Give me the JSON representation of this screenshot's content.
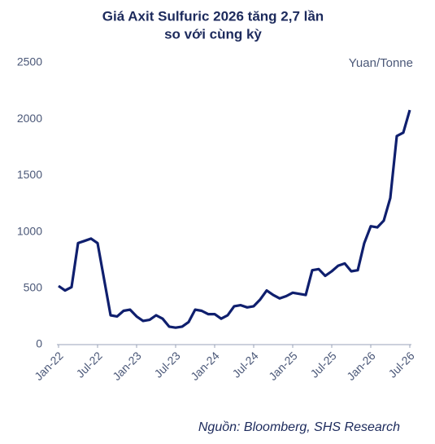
{
  "chart_data": {
    "type": "line",
    "title": [
      "Giá Axit Sulfuric 2026 tăng 2,7 lần",
      "so với cùng kỳ"
    ],
    "unit_label": "Yuan/Tonne",
    "source": "Nguồn: Bloomberg,  SHS Research",
    "categories": [
      "Jan-22",
      null,
      null,
      null,
      null,
      null,
      "Jul-22",
      null,
      null,
      null,
      null,
      null,
      "Jan-23",
      null,
      null,
      null,
      null,
      null,
      "Jul-23",
      null,
      null,
      null,
      null,
      null,
      "Jan-24",
      null,
      null,
      null,
      null,
      null,
      "Jul-24",
      null,
      null,
      null,
      null,
      null,
      "Jan-25",
      null,
      null,
      null,
      null,
      null,
      "Jul-25",
      null,
      null,
      null,
      null,
      null,
      "Jan-26",
      null,
      null,
      null,
      null,
      null,
      "Jul-26"
    ],
    "series": [
      {
        "color": "#0f1f6e",
        "values": [
          520,
          480,
          510,
          900,
          920,
          940,
          900,
          580,
          260,
          250,
          300,
          310,
          250,
          210,
          220,
          260,
          230,
          160,
          150,
          160,
          200,
          310,
          300,
          270,
          270,
          230,
          260,
          340,
          350,
          330,
          340,
          400,
          480,
          440,
          410,
          430,
          460,
          450,
          440,
          660,
          670,
          610,
          650,
          700,
          720,
          650,
          660,
          900,
          1050,
          1040,
          1100,
          1300,
          1850,
          1880,
          2080
        ]
      }
    ],
    "ylim": [
      0,
      2500
    ],
    "yticks": [
      0,
      500,
      1000,
      1500,
      2000,
      2500
    ]
  }
}
